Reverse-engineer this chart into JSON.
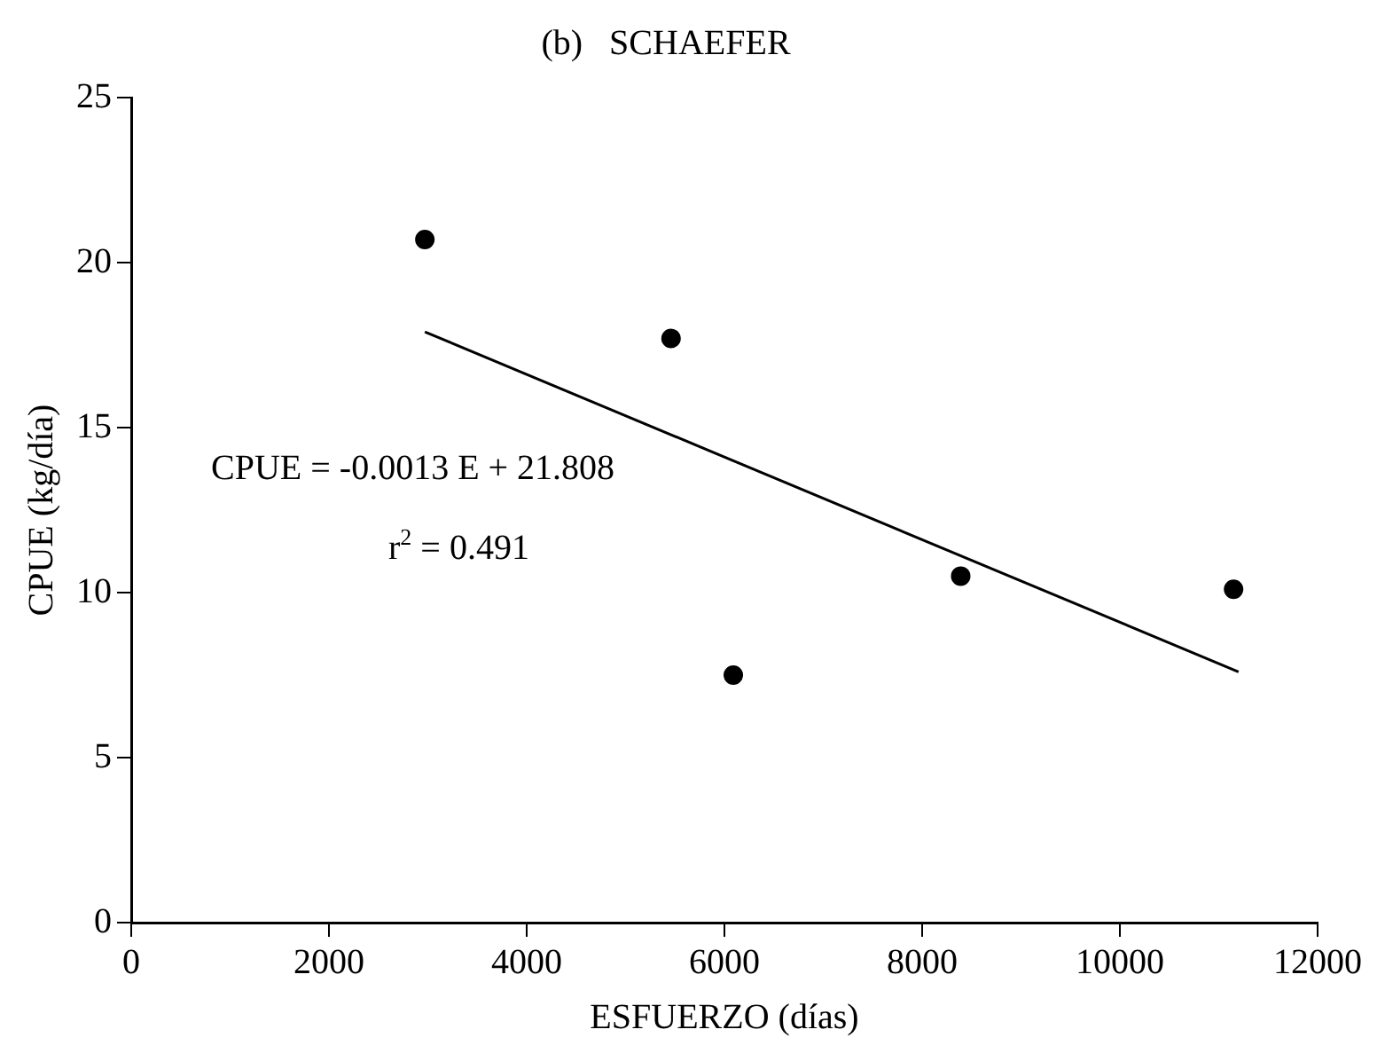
{
  "chart_data": {
    "type": "scatter",
    "title": "(b)   SCHAEFER",
    "xlabel": "ESFUERZO (días)",
    "ylabel": "CPUE (kg/día)",
    "series": [
      {
        "type": "scatter",
        "color": "#000000",
        "x": [
          2970,
          5460,
          6090,
          8390,
          11150
        ],
        "values": [
          20.7,
          17.7,
          7.5,
          10.5,
          10.1
        ]
      },
      {
        "type": "line",
        "color": "#000000",
        "x": [
          2970,
          11200
        ],
        "values": [
          17.9,
          7.6
        ],
        "marker": "none"
      }
    ],
    "annotations": [
      "CPUE = -0.0013 E + 21.808",
      "r$^{2}$ = 0.491"
    ],
    "xlim": [
      0,
      12000
    ],
    "xticks": [
      0,
      2000,
      4000,
      6000,
      8000,
      10000,
      12000
    ],
    "ylim": [
      0,
      25
    ],
    "yticks": [
      0,
      5,
      10,
      15,
      20,
      25
    ],
    "grid": false,
    "legend": false,
    "marker": "circle"
  }
}
